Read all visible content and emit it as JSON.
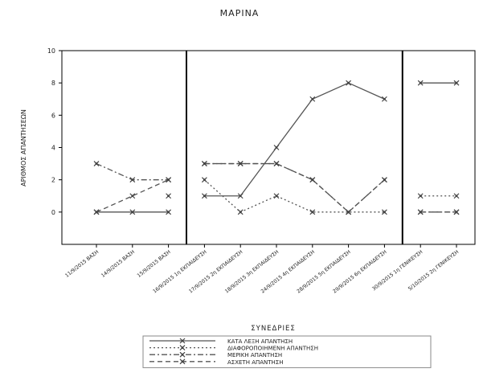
{
  "chart_data": {
    "type": "line",
    "title": "ΜΑΡΙΝΑ",
    "xlabel": "ΣΥΝΕΔΡΙΕΣ",
    "ylabel": "ΑΡΙΘΜΟΣ ΑΠΑΝΤΗΣΕΩΝ",
    "ylim": [
      -2,
      10
    ],
    "yticks": [
      0,
      2,
      4,
      6,
      8,
      10
    ],
    "grid": false,
    "legend_position": "bottom-center",
    "categories": [
      "11/9/2015 ΒΑΣΗ",
      "14/9/2015 ΒΑΣΗ",
      "15/9/2015 ΒΑΣΗ",
      "16/9/2015 1η ΕΚΠΑΙΔΕΥΣΗ",
      "17/9/2015 2η ΕΚΠΑΙΔΕΥΣΗ",
      "18/9/2015 3η ΕΚΠΑΙΔΕΥΣΗ",
      "24/9/2015 4η ΕΚΠΑΙΔΕΥΣΗ",
      "28/9/2015 5η ΕΚΠΑΙΔΕΥΣΗ",
      "29/9/2015 6η ΕΚΠΑΙΔΕΥΣΗ",
      "30/9/2015 1η ΓΕΝΙΚΕΥΣΗ",
      "5/10/2015 2η ΓΕΝΙΚΕΥΣΗ"
    ],
    "phase_separators_after": [
      2,
      8
    ],
    "series": [
      {
        "name": "ΚΑΤΑ ΛΕΞΗ ΑΠΑΝΤΗΣΗ",
        "values": [
          0,
          0,
          0,
          1,
          1,
          4,
          7,
          8,
          7,
          8,
          8
        ],
        "style": "solid"
      },
      {
        "name": "ΔΙΑΦΟΡΟΠΟΙΗΜΕΝΗ ΑΠΑΝΤΗΣΗ",
        "values": [
          null,
          null,
          1,
          2,
          0,
          1,
          0,
          0,
          0,
          1,
          1
        ],
        "style": "dotted"
      },
      {
        "name": "ΜΕΡΙΚΗ ΑΠΑΝΤΗΣΗ",
        "values": [
          3,
          2,
          2,
          3,
          3,
          3,
          2,
          0,
          2,
          0,
          0
        ],
        "style": "dashdot"
      },
      {
        "name": "ΑΣΧΕΤΗ ΑΠΑΝΤΗΣΗ",
        "values": [
          0,
          1,
          2,
          3,
          3,
          3,
          2,
          0,
          2,
          0,
          0
        ],
        "style": "dashed"
      }
    ],
    "colors": {
      "line": "#555555",
      "marker": "#444444",
      "axis": "#000000"
    }
  }
}
